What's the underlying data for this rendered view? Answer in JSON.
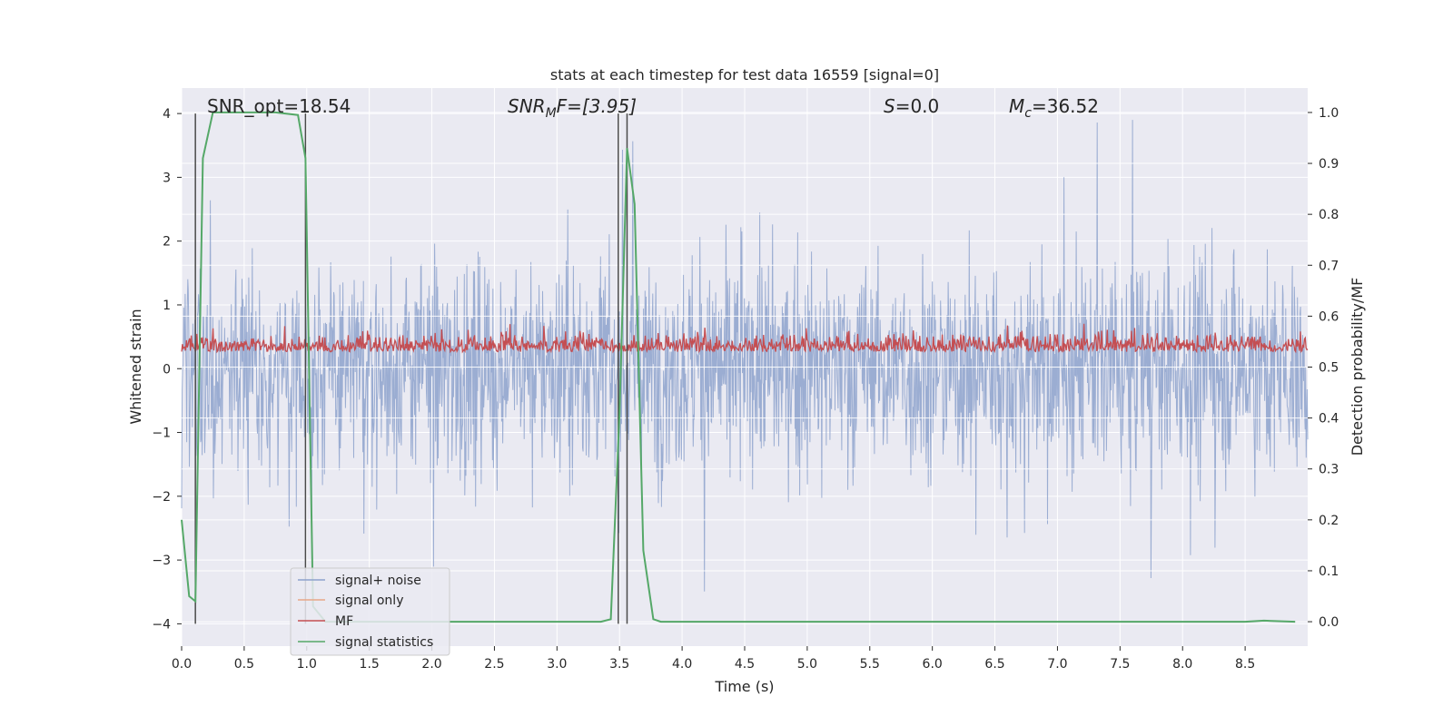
{
  "chart_data": {
    "type": "line",
    "title": "stats at each timestep for test data 16559 [signal=0]",
    "xlabel": "Time (s)",
    "ylabel": "Whitened strain",
    "ylabel_right": "Detection probability/MF",
    "xlim": [
      0,
      9.0
    ],
    "ylim": [
      -4.35,
      4.4
    ],
    "ylim_right": [
      -0.048,
      1.048
    ],
    "x_ticks": [
      "0.0",
      "0.5",
      "1.0",
      "1.5",
      "2.0",
      "2.5",
      "3.0",
      "3.5",
      "4.0",
      "4.5",
      "5.0",
      "5.5",
      "6.0",
      "6.5",
      "7.0",
      "7.5",
      "8.0",
      "8.5"
    ],
    "y_ticks": [
      "−4",
      "−3",
      "−2",
      "−1",
      "0",
      "1",
      "2",
      "3",
      "4"
    ],
    "y_tick_values": [
      -4,
      -3,
      -2,
      -1,
      0,
      1,
      2,
      3,
      4
    ],
    "y_right_ticks": [
      "0.0",
      "0.1",
      "0.2",
      "0.3",
      "0.4",
      "0.5",
      "0.6",
      "0.7",
      "0.8",
      "0.9",
      "1.0"
    ],
    "y_right_tick_values": [
      0,
      0.1,
      0.2,
      0.3,
      0.4,
      0.5,
      0.6,
      0.7,
      0.8,
      0.9,
      1.0
    ],
    "grid": true,
    "legend_position": "lower-left",
    "annotations": {
      "snr_opt": "SNR_opt=18.54",
      "snr_mf_name": "SNR",
      "snr_mf_sub": "M",
      "snr_mf_rest": "F=[3.95]",
      "s_name": "S",
      "s_rest": "=0.0",
      "mc_name": "M",
      "mc_sub": "c",
      "mc_rest": "=36.52"
    },
    "series": [
      {
        "name": "signal+ noise",
        "color": "#8da2cc",
        "axis": "left",
        "amplitude_range": [
          -3.6,
          3.9
        ]
      },
      {
        "name": "signal only",
        "color": "#e8a888",
        "axis": "left",
        "values": []
      },
      {
        "name": "MF",
        "color": "#c44e52",
        "axis": "right",
        "range": [
          0.5,
          0.6
        ]
      },
      {
        "name": "signal statistics",
        "color": "#55a868",
        "axis": "right",
        "x": [
          0.0,
          0.06,
          0.11,
          0.17,
          0.25,
          0.5,
          0.75,
          0.93,
          0.99,
          1.05,
          1.15,
          1.5,
          2.0,
          2.5,
          3.0,
          3.35,
          3.43,
          3.5,
          3.56,
          3.62,
          3.69,
          3.77,
          3.83,
          4.0,
          5.0,
          6.0,
          7.0,
          8.0,
          8.5,
          8.65,
          8.9
        ],
        "values": [
          0.2,
          0.05,
          0.04,
          0.91,
          1.0,
          1.0,
          1.0,
          0.995,
          0.91,
          0.03,
          0.0,
          0.0,
          0.0,
          0.0,
          0.0,
          0.0,
          0.005,
          0.41,
          0.93,
          0.82,
          0.14,
          0.005,
          0.0,
          0.0,
          0.0,
          0.0,
          0.0,
          0.0,
          0.0,
          0.002,
          0.0
        ]
      }
    ],
    "vertical_markers": [
      0.11,
      0.99,
      3.49,
      3.56
    ]
  },
  "legend": {
    "items": [
      {
        "label": "signal+ noise",
        "color": "#8da2cc"
      },
      {
        "label": "signal only",
        "color": "#e8a888"
      },
      {
        "label": "MF",
        "color": "#c44e52"
      },
      {
        "label": "signal statistics",
        "color": "#55a868"
      }
    ]
  },
  "colors": {
    "plot_background": "#eaeaf2",
    "grid": "#ffffff",
    "marker_line": "#4a4a4a"
  }
}
